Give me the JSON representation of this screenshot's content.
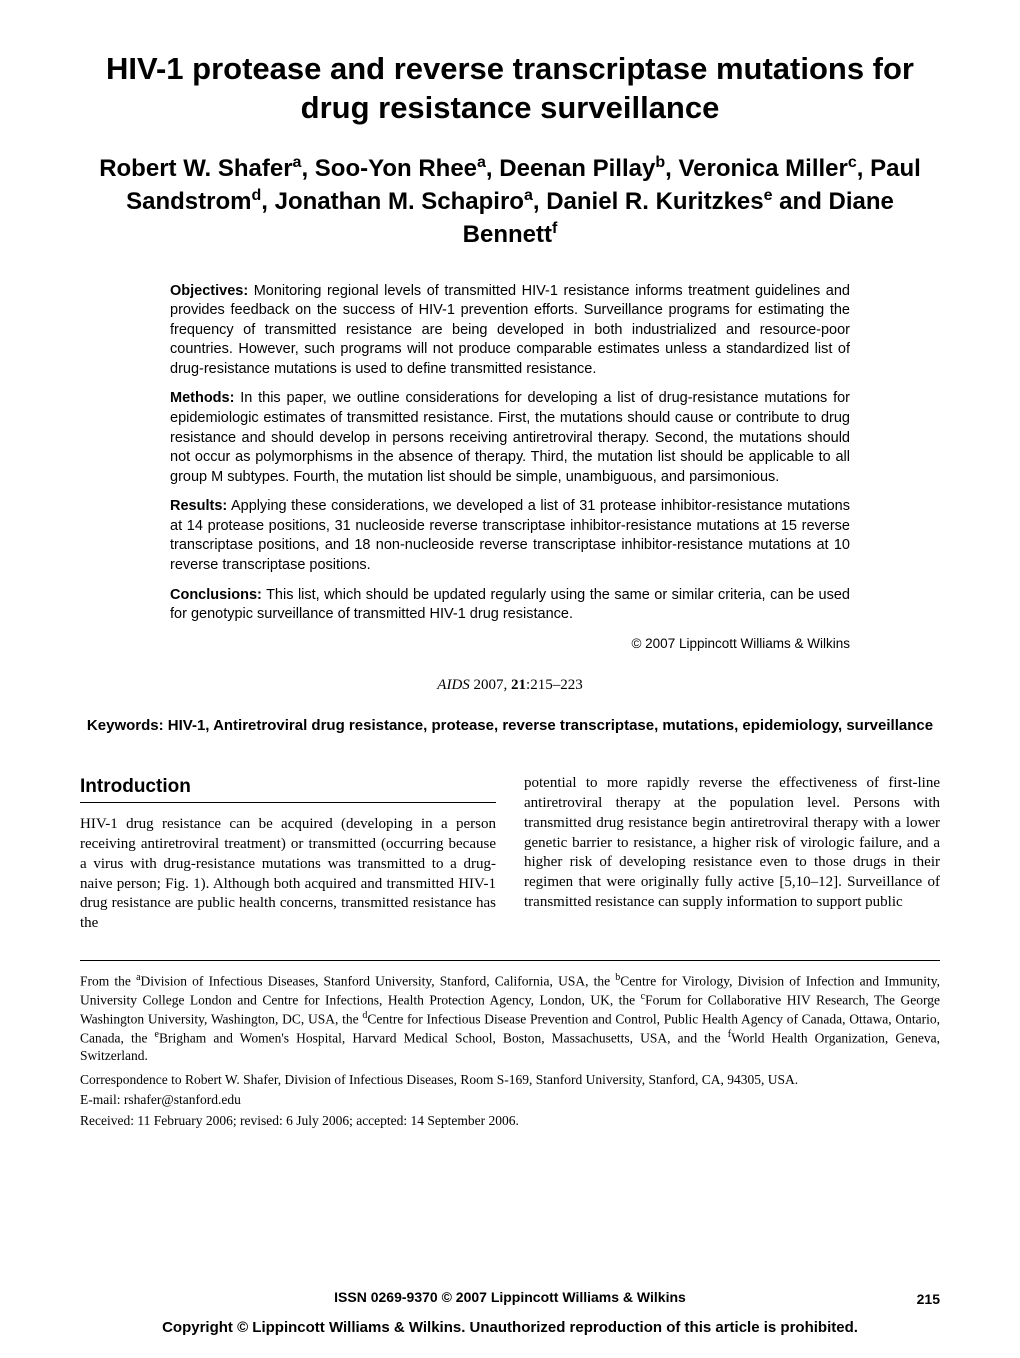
{
  "title": "HIV-1 protease and reverse transcriptase mutations for drug resistance surveillance",
  "authors_html": "Robert W. Shafer<sup>a</sup>, Soo-Yon Rhee<sup>a</sup>, Deenan Pillay<sup>b</sup>, Veronica Miller<sup>c</sup>, Paul Sandstrom<sup>d</sup>, Jonathan M. Schapiro<sup>a</sup>, Daniel R. Kuritzkes<sup>e</sup> and Diane Bennett<sup>f</sup>",
  "abstract": {
    "objectives": {
      "label": "Objectives:",
      "text": " Monitoring regional levels of transmitted HIV-1 resistance informs treatment guidelines and provides feedback on the success of HIV-1 prevention efforts. Surveillance programs for estimating the frequency of transmitted resistance are being developed in both industrialized and resource-poor countries. However, such programs will not produce comparable estimates unless a standardized list of drug-resistance mutations is used to define transmitted resistance."
    },
    "methods": {
      "label": "Methods:",
      "text": " In this paper, we outline considerations for developing a list of drug-resistance mutations for epidemiologic estimates of transmitted resistance. First, the mutations should cause or contribute to drug resistance and should develop in persons receiving antiretroviral therapy. Second, the mutations should not occur as polymorphisms in the absence of therapy. Third, the mutation list should be applicable to all group M subtypes. Fourth, the mutation list should be simple, unambiguous, and parsimonious."
    },
    "results": {
      "label": "Results:",
      "text": " Applying these considerations, we developed a list of 31 protease inhibitor-resistance mutations at 14 protease positions, 31 nucleoside reverse transcriptase inhibitor-resistance mutations at 15 reverse transcriptase positions, and 18 non-nucleoside reverse transcriptase inhibitor-resistance mutations at 10 reverse transcriptase positions."
    },
    "conclusions": {
      "label": "Conclusions:",
      "text": " This list, which should be updated regularly using the same or similar criteria, can be used for genotypic surveillance of transmitted HIV-1 drug resistance."
    },
    "copyright": "© 2007 Lippincott Williams & Wilkins"
  },
  "journal": {
    "name": "AIDS",
    "year": "2007",
    "volume": "21",
    "pages": ":215–223"
  },
  "keywords": "Keywords: HIV-1, Antiretroviral drug resistance, protease, reverse transcriptase, mutations, epidemiology, surveillance",
  "intro_heading": "Introduction",
  "intro_left": "HIV-1 drug resistance can be acquired (developing in a person receiving antiretroviral treatment) or transmitted (occurring because a virus with drug-resistance mutations was transmitted to a drug-naive person; Fig. 1). Although both acquired and transmitted HIV-1 drug resistance are public health concerns, transmitted resistance has the",
  "intro_right": "potential to more rapidly reverse the effectiveness of first-line antiretroviral therapy at the population level. Persons with transmitted drug resistance begin antiretroviral therapy with a lower genetic barrier to resistance, a higher risk of virologic failure, and a higher risk of developing resistance even to those drugs in their regimen that were originally fully active [5,10–12]. Surveillance of transmitted resistance can supply information to support public",
  "affiliations_html": "From the <sup>a</sup>Division of Infectious Diseases, Stanford University, Stanford, California, USA, the <sup>b</sup>Centre for Virology, Division of Infection and Immunity, University College London and Centre for Infections, Health Protection Agency, London, UK, the <sup>c</sup>Forum for Collaborative HIV Research, The George Washington University, Washington, DC, USA, the <sup>d</sup>Centre for Infectious Disease Prevention and Control, Public Health Agency of Canada, Ottawa, Ontario, Canada, the <sup>e</sup>Brigham and Women's Hospital, Harvard Medical School, Boston, Massachusetts, USA, and the <sup>f</sup>World Health Organization, Geneva, Switzerland.",
  "correspondence": "Correspondence to Robert W. Shafer, Division of Infectious Diseases, Room S-169, Stanford University, Stanford, CA, 94305, USA.",
  "email": "E-mail: rshafer@stanford.edu",
  "received": "Received: 11 February 2006; revised: 6 July 2006; accepted: 14 September 2006.",
  "issn": "ISSN 0269-9370 © 2007 Lippincott Williams & Wilkins",
  "page_number": "215",
  "bottom_copyright": "Copyright © Lippincott Williams & Wilkins. Unauthorized reproduction of this article is prohibited."
}
